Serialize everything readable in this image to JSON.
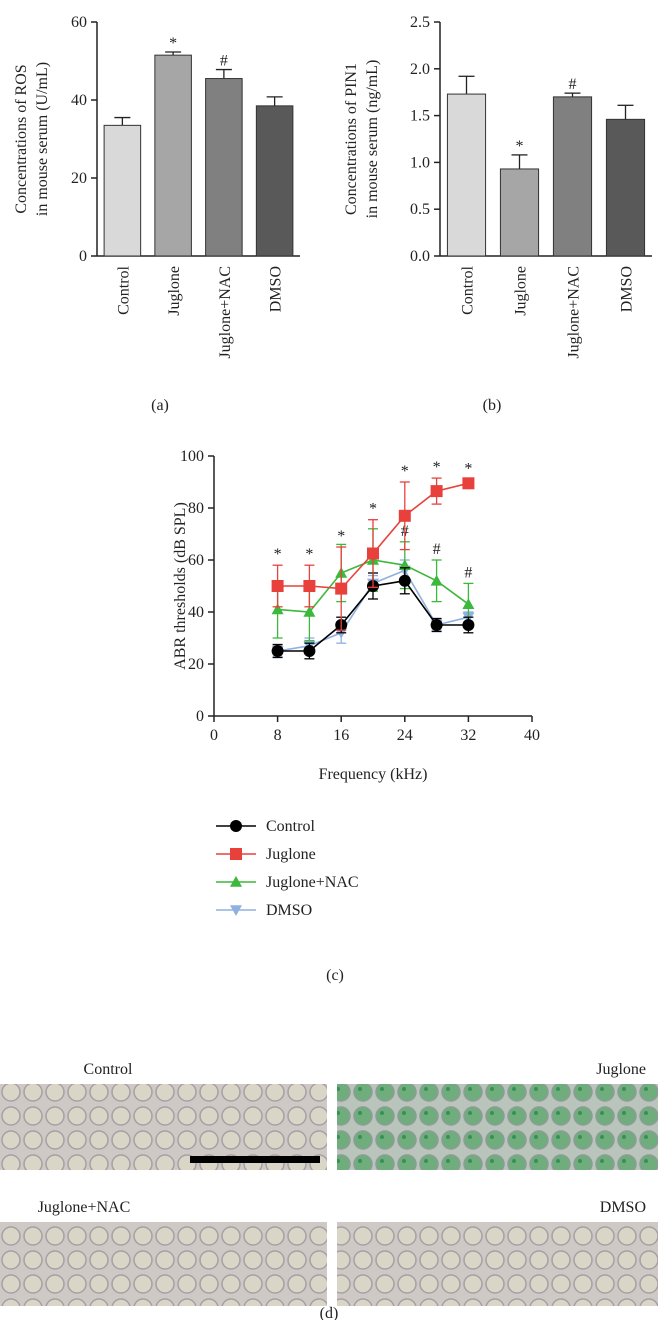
{
  "chart_data": [
    {
      "type": "bar",
      "label": "(a)",
      "ylabel": [
        "Concentrations of ROS",
        "in mouse serum (U/mL)"
      ],
      "categories": [
        "Control",
        "Juglone",
        "Juglone+NAC",
        "DMSO"
      ],
      "values": [
        33.5,
        51.5,
        45.5,
        38.5
      ],
      "errors": [
        2,
        0.8,
        2.3,
        2.3
      ],
      "value_annotations": [
        null,
        "*",
        "#",
        null
      ],
      "colors": [
        "#d9d9d9",
        "#a6a6a6",
        "#808080",
        "#595959"
      ],
      "ylim": [
        0,
        60
      ],
      "yticks": [
        0,
        20,
        40,
        60
      ]
    },
    {
      "type": "bar",
      "label": "(b)",
      "ylabel": [
        "Concentrations of PIN1",
        "in mouse serum (ng/mL)"
      ],
      "categories": [
        "Control",
        "Juglone",
        "Juglone+NAC",
        "DMSO"
      ],
      "values": [
        1.73,
        0.93,
        1.7,
        1.46
      ],
      "errors": [
        0.19,
        0.15,
        0.04,
        0.15
      ],
      "value_annotations": [
        null,
        "*",
        "#",
        null
      ],
      "colors": [
        "#d9d9d9",
        "#a6a6a6",
        "#808080",
        "#595959"
      ],
      "ylim": [
        0,
        2.5
      ],
      "yticks": [
        {
          "value": 0,
          "label": "0.0"
        },
        0.5,
        {
          "value": 1,
          "label": "1.0"
        },
        1.5,
        {
          "value": 2,
          "label": "2.0"
        },
        2.5
      ]
    },
    {
      "type": "line",
      "label": "(c)",
      "ylabel": [
        "ABR thresholds (dB SPL)"
      ],
      "xlabel": "Frequency (kHz)",
      "x": [
        8,
        12,
        16,
        20,
        24,
        28,
        32
      ],
      "xlim": [
        0,
        40
      ],
      "xticks": [
        0,
        8,
        16,
        24,
        32,
        40
      ],
      "ylim": [
        0,
        100
      ],
      "yticks": [
        0,
        20,
        40,
        60,
        80,
        100
      ],
      "series": [
        {
          "name": "Control",
          "color": "#000000",
          "marker": "circle",
          "values": [
            25,
            25,
            35,
            50,
            52,
            35,
            35
          ],
          "errors": [
            2.5,
            3,
            3,
            5,
            5,
            2.5,
            3
          ],
          "value_annotations": [
            null,
            null,
            null,
            null,
            null,
            null,
            null
          ]
        },
        {
          "name": "Juglone",
          "color": "#e8413c",
          "marker": "square",
          "values": [
            50,
            50,
            49,
            62.5,
            77,
            86.5,
            89.5
          ],
          "errors": [
            8,
            8,
            16,
            13,
            13,
            5,
            1.5
          ],
          "value_annotations": [
            "*",
            "*",
            "*",
            "*",
            "*",
            "*",
            "*"
          ]
        },
        {
          "name": "Juglone+NAC",
          "color": "#3cb83c",
          "marker": "triangle-up",
          "values": [
            41,
            40,
            55,
            60,
            58,
            52,
            43
          ],
          "errors": [
            11,
            11,
            11,
            12,
            9,
            8,
            8
          ],
          "value_annotations": [
            null,
            null,
            null,
            null,
            "#",
            "#",
            "#"
          ]
        },
        {
          "name": "DMSO",
          "color": "#8fb0e0",
          "marker": "triangle-down",
          "values": [
            25,
            27,
            32,
            51,
            56,
            35,
            38
          ],
          "errors": [
            2,
            3,
            4,
            3,
            4,
            2,
            2
          ],
          "value_annotations": [
            null,
            null,
            null,
            null,
            null,
            null,
            null
          ]
        }
      ]
    }
  ],
  "images": {
    "label": "(d)",
    "items": [
      {
        "label": "Control"
      },
      {
        "label": "Juglone"
      },
      {
        "label": "Juglone+NAC"
      },
      {
        "label": "DMSO"
      }
    ]
  }
}
